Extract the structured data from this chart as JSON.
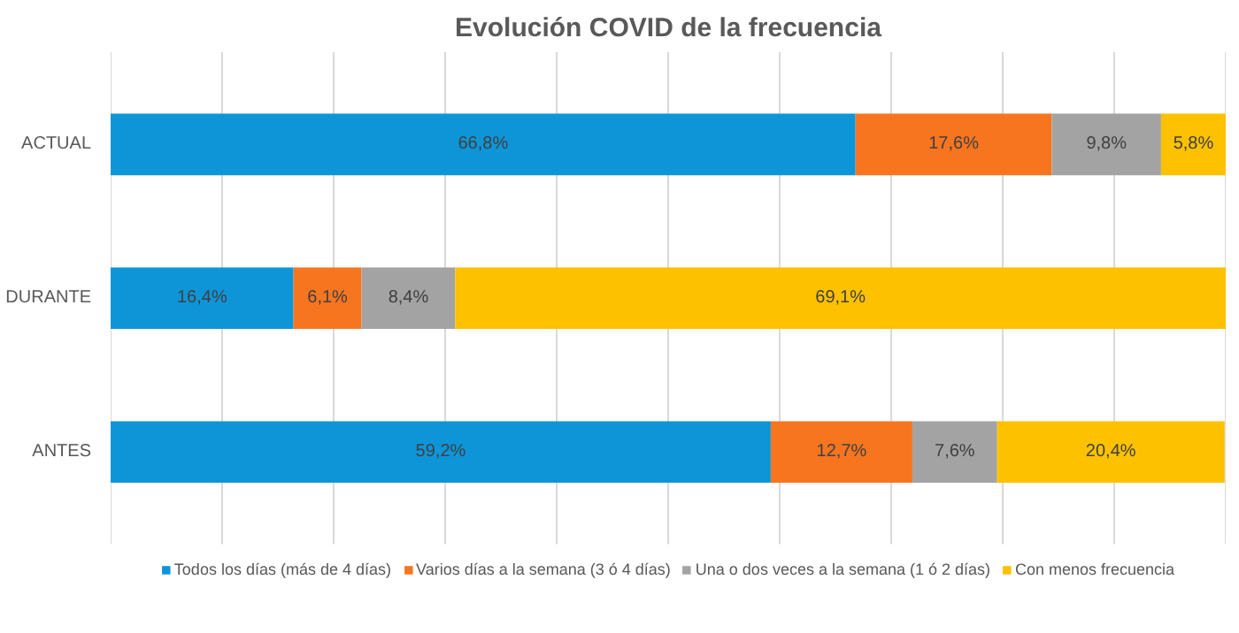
{
  "chart_data": {
    "type": "bar",
    "title": "Evolución COVID de la frecuencia",
    "orientation": "horizontal",
    "stacked": true,
    "categories": [
      "ACTUAL",
      "DURANTE",
      "ANTES"
    ],
    "series": [
      {
        "name": "Todos los días (más de 4 días)",
        "color": "#0e95d8",
        "values": [
          66.8,
          16.4,
          59.2
        ],
        "value_labels": [
          "66,8%",
          "16,4%",
          "59,2%"
        ]
      },
      {
        "name": "Varios días a la semana (3 ó 4 días)",
        "color": "#f87520",
        "values": [
          17.6,
          6.1,
          12.7
        ],
        "value_labels": [
          "17,6%",
          "6,1%",
          "12,7%"
        ]
      },
      {
        "name": "Una o dos veces a la semana (1 ó 2 días)",
        "color": "#a3a3a3",
        "values": [
          9.8,
          8.4,
          7.6
        ],
        "value_labels": [
          "9,8%",
          "8,4%",
          "7,6%"
        ]
      },
      {
        "name": "Con menos frecuencia",
        "color": "#fdc100",
        "values": [
          5.8,
          69.1,
          20.4
        ],
        "value_labels": [
          "5,8%",
          "69,1%",
          "20,4%"
        ]
      }
    ],
    "xlim": [
      0,
      100
    ],
    "xticks": [
      {
        "value": 0,
        "label": null
      },
      {
        "value": 10,
        "label": null
      },
      {
        "value": 20,
        "label": null
      },
      {
        "value": 30,
        "label": null
      },
      {
        "value": 40,
        "label": null
      },
      {
        "value": 50,
        "label": null
      },
      {
        "value": 60,
        "label": null
      },
      {
        "value": 70,
        "label": null
      },
      {
        "value": 80,
        "label": null
      },
      {
        "value": 90,
        "label": null
      },
      {
        "value": 100,
        "label": null
      }
    ],
    "tick_labels": "y",
    "grid": "x",
    "legend": "bottom"
  }
}
